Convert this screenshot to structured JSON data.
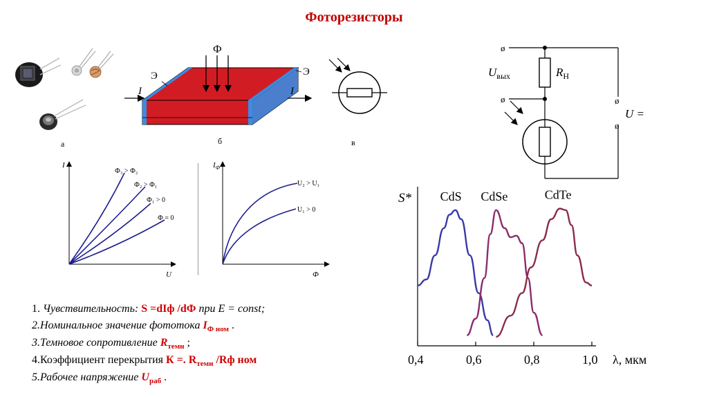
{
  "title": "Фоторезисторы",
  "figure_labels": {
    "a": "а",
    "b": "б",
    "v": "в"
  },
  "device_labels": {
    "flux": "Ф",
    "current": "I",
    "electrode": "Э"
  },
  "circuit": {
    "u_out": "U",
    "u_out_sub": "вых",
    "r_load": "R",
    "r_load_sub": "Н",
    "u_supply": "U ="
  },
  "iv_graph": {
    "y_axis": "I",
    "x_axis": "U",
    "curves": [
      "Ф₃ > Ф₂",
      "Ф₂ > Ф₁",
      "Ф₁ > 0",
      "Ф = 0"
    ]
  },
  "lux_graph": {
    "y_axis": "I",
    "y_axis_sub": "Ф",
    "x_axis": "Ф",
    "curves": [
      "U₂ > U₁",
      "U₁ > 0"
    ]
  },
  "properties": {
    "p1_lead": "1. ",
    "p1_text": "Чувствительность: ",
    "p1_formula": "S =dIф /dФ",
    "p1_tail": " при E = const;",
    "p2_text": "2.Номинальное значение фототока ",
    "p2_sym": "I",
    "p2_sub": "Ф ном",
    "p2_tail": " .",
    "p3_text": "3.Темновое сопротивление ",
    "p3_sym": "R",
    "p3_sub": "темн",
    "p3_tail": " ;",
    "p4_text": "4.Коэффициент перекрытия  ",
    "p4_formula": "К =. R",
    "p4_sub": "темн",
    "p4_tail": " /Rф ном",
    "p5_text": "5.Рабочее напряжение ",
    "p5_sym": "U",
    "p5_sub": "раб",
    "p5_tail": " ."
  },
  "chart_data": {
    "type": "line",
    "title": "",
    "ylabel": "S*",
    "xlabel": "λ, мкм",
    "x_ticks": [
      "0,4",
      "0,6",
      "0,8",
      "1,0"
    ],
    "xlim": [
      0.4,
      1.0
    ],
    "ylim": [
      0,
      1.0
    ],
    "grid": false,
    "series": [
      {
        "name": "CdS",
        "color": "#3a3aa8",
        "x": [
          0.4,
          0.43,
          0.46,
          0.49,
          0.51,
          0.53,
          0.55,
          0.58,
          0.61,
          0.64,
          0.66
        ],
        "y": [
          0.4,
          0.44,
          0.6,
          0.78,
          0.87,
          0.9,
          0.84,
          0.6,
          0.35,
          0.17,
          0.07
        ]
      },
      {
        "name": "CdSe",
        "color": "#8a2c6e",
        "x": [
          0.57,
          0.6,
          0.63,
          0.65,
          0.67,
          0.7,
          0.72,
          0.74,
          0.76,
          0.78,
          0.8,
          0.83
        ],
        "y": [
          0.07,
          0.18,
          0.45,
          0.74,
          0.9,
          0.78,
          0.72,
          0.73,
          0.68,
          0.45,
          0.22,
          0.07
        ]
      },
      {
        "name": "CdTe",
        "color": "#8a2c48",
        "x": [
          0.67,
          0.72,
          0.76,
          0.79,
          0.83,
          0.86,
          0.89,
          0.91,
          0.93,
          0.95,
          0.98,
          1.0
        ],
        "y": [
          0.06,
          0.2,
          0.35,
          0.52,
          0.7,
          0.84,
          0.91,
          0.9,
          0.8,
          0.6,
          0.42,
          0.4
        ]
      }
    ]
  },
  "colors": {
    "title": "#c00000",
    "highlight": "#d00000",
    "film": "#d21c24",
    "edge": "#3c8be0",
    "graph_line": "#1d1d8f"
  }
}
